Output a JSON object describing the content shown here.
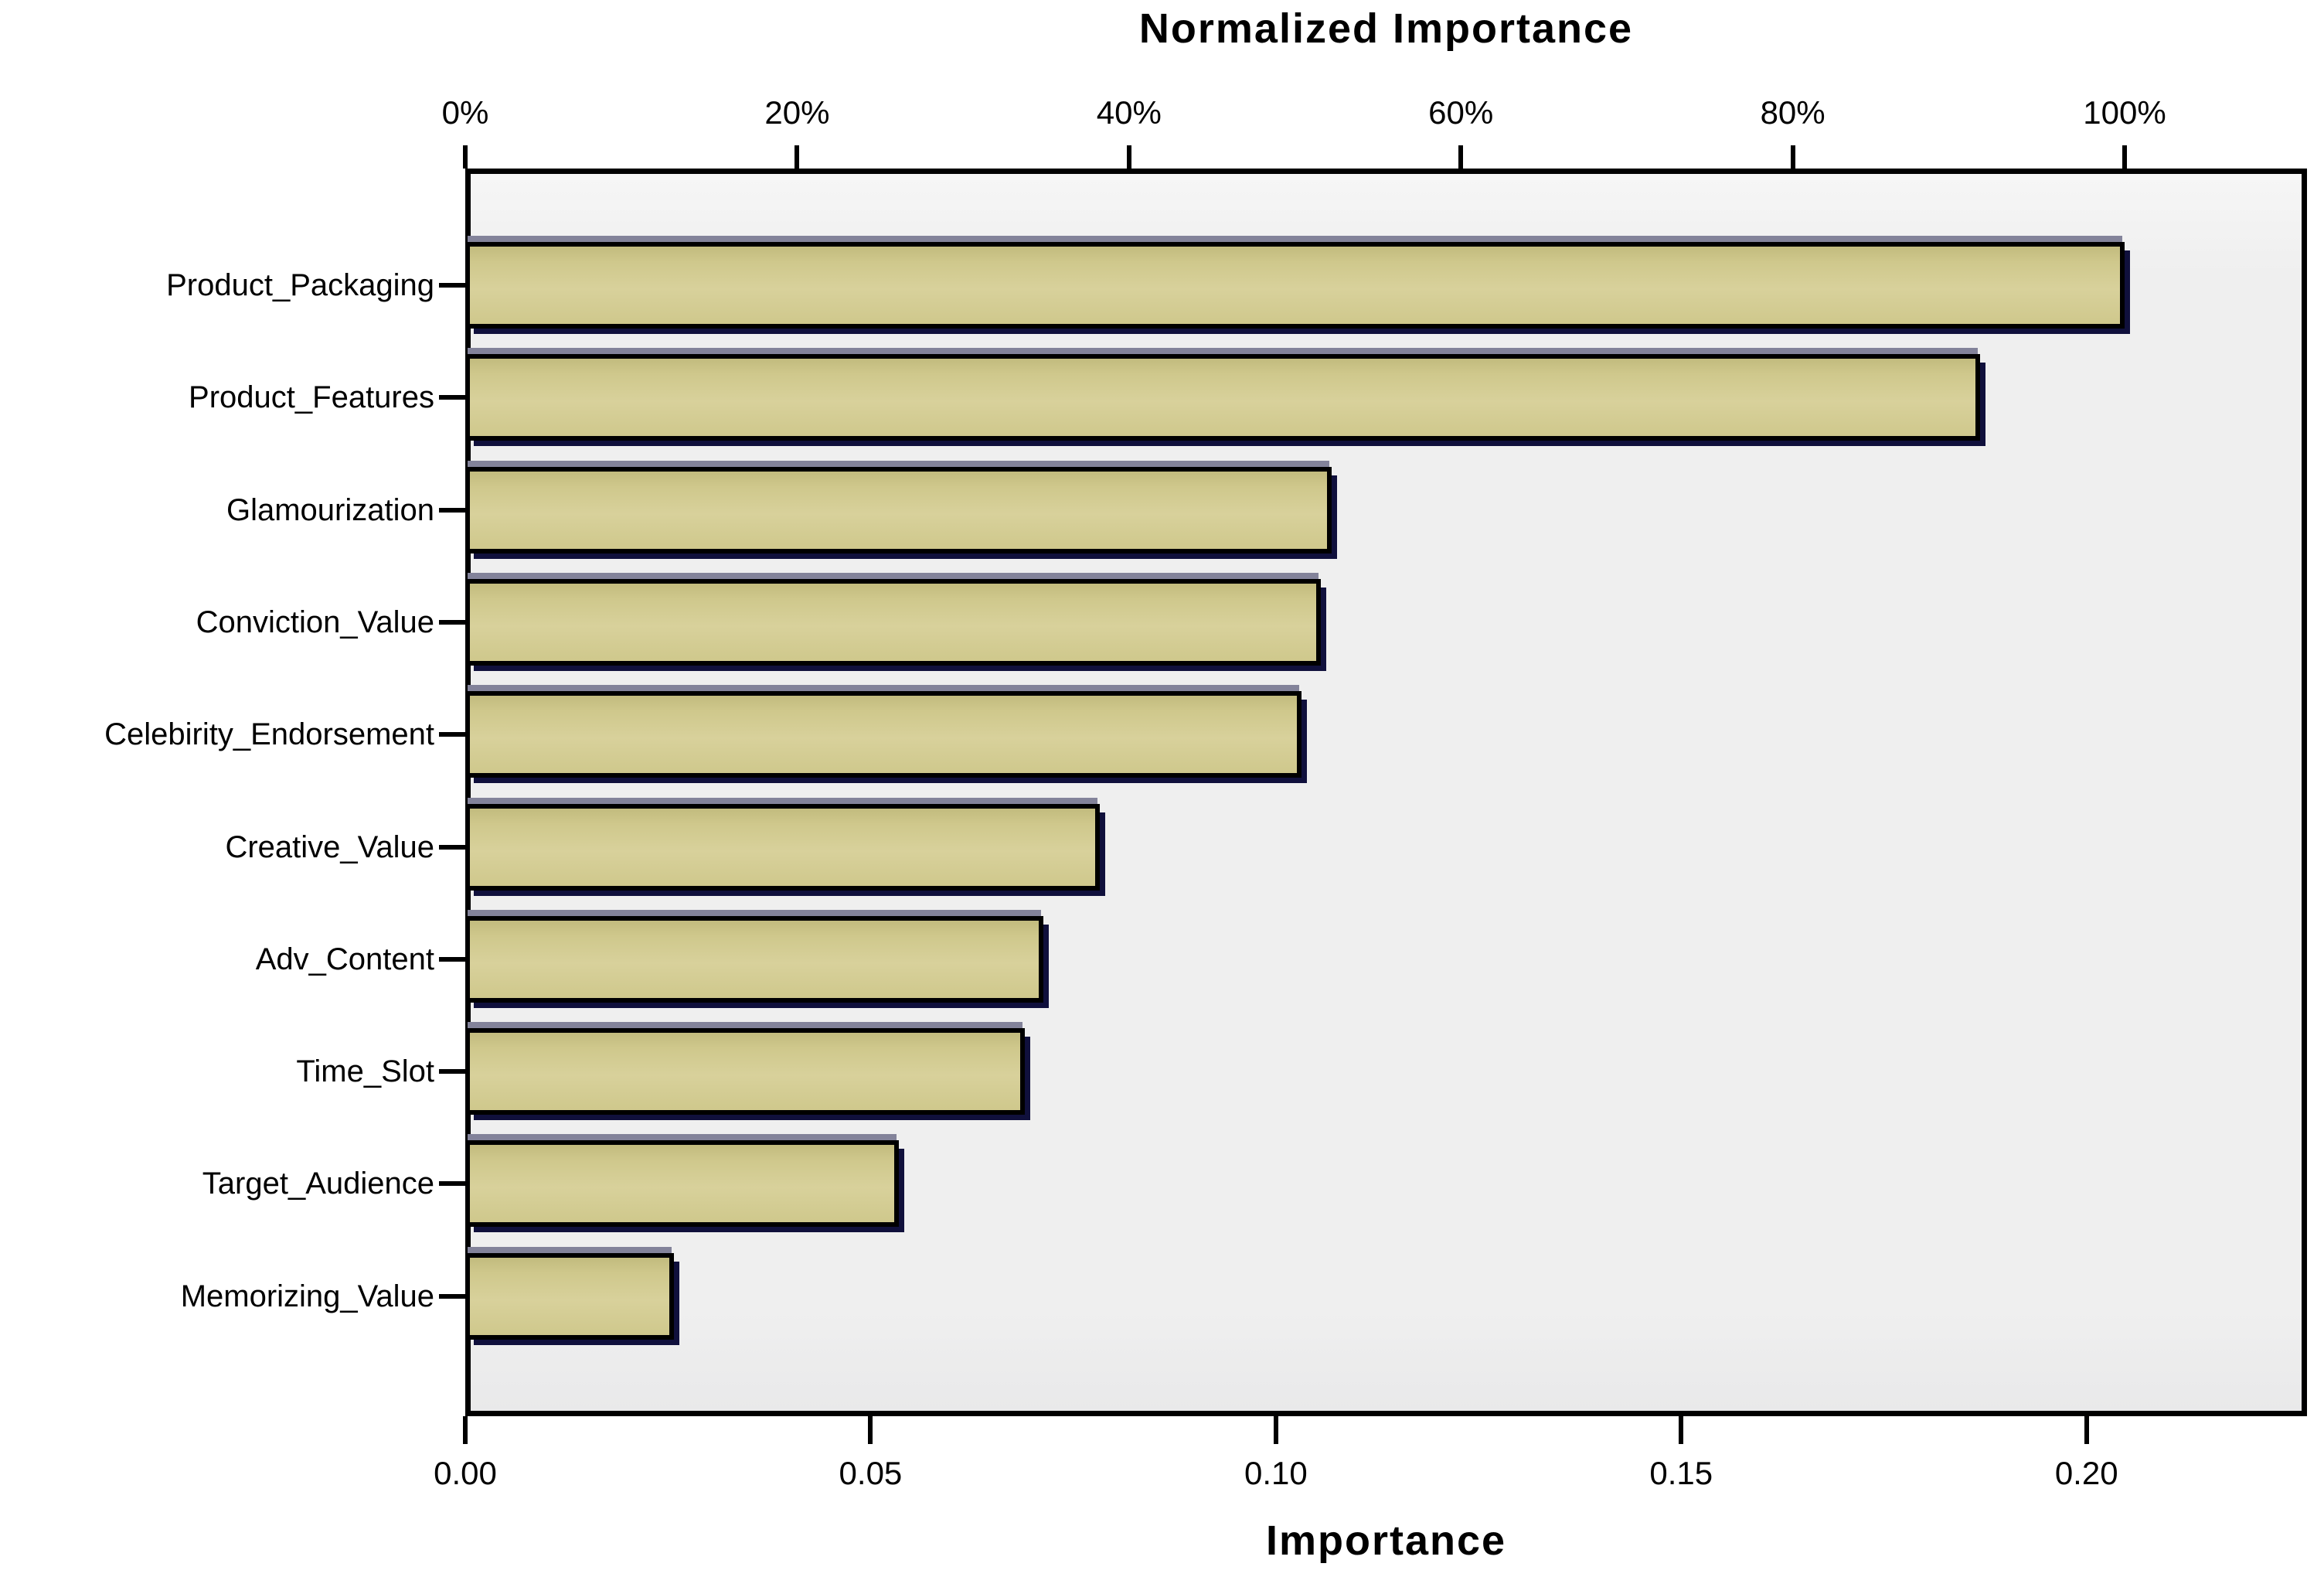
{
  "chart_data": {
    "type": "bar",
    "orientation": "horizontal",
    "title": "Normalized Importance",
    "xlabel": "Importance",
    "categories": [
      "Product_Packaging",
      "Product_Features",
      "Glamourization",
      "Conviction_Value",
      "Celebirity_Endorsement",
      "Creative_Value",
      "Adv_Content",
      "Time_Slot",
      "Target_Audience",
      "Memorizing_Value"
    ],
    "values": [
      0.2047,
      0.1869,
      0.1069,
      0.1055,
      0.1032,
      0.0783,
      0.0713,
      0.069,
      0.0535,
      0.0257
    ],
    "normalized_percent": [
      100,
      91.3,
      52.2,
      51.5,
      50.4,
      38.2,
      34.8,
      33.7,
      26.1,
      12.6
    ],
    "top_axis": {
      "tick_labels": [
        "0%",
        "20%",
        "40%",
        "60%",
        "80%",
        "100%"
      ],
      "tick_percents": [
        0,
        20,
        40,
        60,
        80,
        100
      ],
      "max_normalized_importance": 0.2047
    },
    "bottom_axis": {
      "tick_labels": [
        "0.00",
        "0.05",
        "0.10",
        "0.15",
        "0.20"
      ],
      "tick_values": [
        0.0,
        0.05,
        0.1,
        0.15,
        0.2
      ],
      "range_max": 0.2272
    },
    "grid": "off",
    "legend": "none",
    "colors": {
      "bar_fill": "#d2cb90",
      "bar_border": "#000000",
      "bar_shadow_navy": "#10103c",
      "bar_bevel_gray": "#83839a",
      "plot_background": "#efefef",
      "page_background": "#ffffff",
      "text": "#000000"
    }
  }
}
